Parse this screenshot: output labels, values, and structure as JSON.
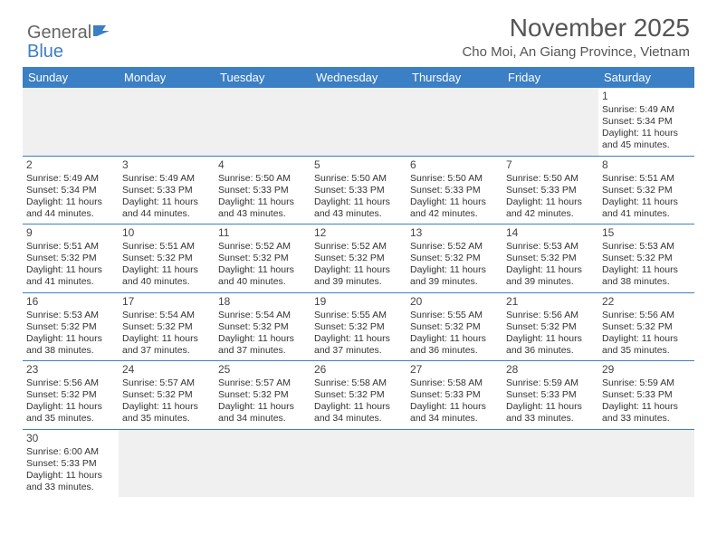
{
  "logo": {
    "text1": "General",
    "text2": "Blue"
  },
  "title": "November 2025",
  "location": "Cho Moi, An Giang Province, Vietnam",
  "colors": {
    "header_bg": "#3b7fc4",
    "header_text": "#ffffff",
    "border": "#3b7fc4",
    "empty_bg": "#f0f0f0",
    "text": "#333333"
  },
  "weekdays": [
    "Sunday",
    "Monday",
    "Tuesday",
    "Wednesday",
    "Thursday",
    "Friday",
    "Saturday"
  ],
  "weeks": [
    [
      null,
      null,
      null,
      null,
      null,
      null,
      {
        "d": "1",
        "sr": "Sunrise: 5:49 AM",
        "ss": "Sunset: 5:34 PM",
        "dl": "Daylight: 11 hours and 45 minutes."
      }
    ],
    [
      {
        "d": "2",
        "sr": "Sunrise: 5:49 AM",
        "ss": "Sunset: 5:34 PM",
        "dl": "Daylight: 11 hours and 44 minutes."
      },
      {
        "d": "3",
        "sr": "Sunrise: 5:49 AM",
        "ss": "Sunset: 5:33 PM",
        "dl": "Daylight: 11 hours and 44 minutes."
      },
      {
        "d": "4",
        "sr": "Sunrise: 5:50 AM",
        "ss": "Sunset: 5:33 PM",
        "dl": "Daylight: 11 hours and 43 minutes."
      },
      {
        "d": "5",
        "sr": "Sunrise: 5:50 AM",
        "ss": "Sunset: 5:33 PM",
        "dl": "Daylight: 11 hours and 43 minutes."
      },
      {
        "d": "6",
        "sr": "Sunrise: 5:50 AM",
        "ss": "Sunset: 5:33 PM",
        "dl": "Daylight: 11 hours and 42 minutes."
      },
      {
        "d": "7",
        "sr": "Sunrise: 5:50 AM",
        "ss": "Sunset: 5:33 PM",
        "dl": "Daylight: 11 hours and 42 minutes."
      },
      {
        "d": "8",
        "sr": "Sunrise: 5:51 AM",
        "ss": "Sunset: 5:32 PM",
        "dl": "Daylight: 11 hours and 41 minutes."
      }
    ],
    [
      {
        "d": "9",
        "sr": "Sunrise: 5:51 AM",
        "ss": "Sunset: 5:32 PM",
        "dl": "Daylight: 11 hours and 41 minutes."
      },
      {
        "d": "10",
        "sr": "Sunrise: 5:51 AM",
        "ss": "Sunset: 5:32 PM",
        "dl": "Daylight: 11 hours and 40 minutes."
      },
      {
        "d": "11",
        "sr": "Sunrise: 5:52 AM",
        "ss": "Sunset: 5:32 PM",
        "dl": "Daylight: 11 hours and 40 minutes."
      },
      {
        "d": "12",
        "sr": "Sunrise: 5:52 AM",
        "ss": "Sunset: 5:32 PM",
        "dl": "Daylight: 11 hours and 39 minutes."
      },
      {
        "d": "13",
        "sr": "Sunrise: 5:52 AM",
        "ss": "Sunset: 5:32 PM",
        "dl": "Daylight: 11 hours and 39 minutes."
      },
      {
        "d": "14",
        "sr": "Sunrise: 5:53 AM",
        "ss": "Sunset: 5:32 PM",
        "dl": "Daylight: 11 hours and 39 minutes."
      },
      {
        "d": "15",
        "sr": "Sunrise: 5:53 AM",
        "ss": "Sunset: 5:32 PM",
        "dl": "Daylight: 11 hours and 38 minutes."
      }
    ],
    [
      {
        "d": "16",
        "sr": "Sunrise: 5:53 AM",
        "ss": "Sunset: 5:32 PM",
        "dl": "Daylight: 11 hours and 38 minutes."
      },
      {
        "d": "17",
        "sr": "Sunrise: 5:54 AM",
        "ss": "Sunset: 5:32 PM",
        "dl": "Daylight: 11 hours and 37 minutes."
      },
      {
        "d": "18",
        "sr": "Sunrise: 5:54 AM",
        "ss": "Sunset: 5:32 PM",
        "dl": "Daylight: 11 hours and 37 minutes."
      },
      {
        "d": "19",
        "sr": "Sunrise: 5:55 AM",
        "ss": "Sunset: 5:32 PM",
        "dl": "Daylight: 11 hours and 37 minutes."
      },
      {
        "d": "20",
        "sr": "Sunrise: 5:55 AM",
        "ss": "Sunset: 5:32 PM",
        "dl": "Daylight: 11 hours and 36 minutes."
      },
      {
        "d": "21",
        "sr": "Sunrise: 5:56 AM",
        "ss": "Sunset: 5:32 PM",
        "dl": "Daylight: 11 hours and 36 minutes."
      },
      {
        "d": "22",
        "sr": "Sunrise: 5:56 AM",
        "ss": "Sunset: 5:32 PM",
        "dl": "Daylight: 11 hours and 35 minutes."
      }
    ],
    [
      {
        "d": "23",
        "sr": "Sunrise: 5:56 AM",
        "ss": "Sunset: 5:32 PM",
        "dl": "Daylight: 11 hours and 35 minutes."
      },
      {
        "d": "24",
        "sr": "Sunrise: 5:57 AM",
        "ss": "Sunset: 5:32 PM",
        "dl": "Daylight: 11 hours and 35 minutes."
      },
      {
        "d": "25",
        "sr": "Sunrise: 5:57 AM",
        "ss": "Sunset: 5:32 PM",
        "dl": "Daylight: 11 hours and 34 minutes."
      },
      {
        "d": "26",
        "sr": "Sunrise: 5:58 AM",
        "ss": "Sunset: 5:32 PM",
        "dl": "Daylight: 11 hours and 34 minutes."
      },
      {
        "d": "27",
        "sr": "Sunrise: 5:58 AM",
        "ss": "Sunset: 5:33 PM",
        "dl": "Daylight: 11 hours and 34 minutes."
      },
      {
        "d": "28",
        "sr": "Sunrise: 5:59 AM",
        "ss": "Sunset: 5:33 PM",
        "dl": "Daylight: 11 hours and 33 minutes."
      },
      {
        "d": "29",
        "sr": "Sunrise: 5:59 AM",
        "ss": "Sunset: 5:33 PM",
        "dl": "Daylight: 11 hours and 33 minutes."
      }
    ],
    [
      {
        "d": "30",
        "sr": "Sunrise: 6:00 AM",
        "ss": "Sunset: 5:33 PM",
        "dl": "Daylight: 11 hours and 33 minutes."
      },
      null,
      null,
      null,
      null,
      null,
      null
    ]
  ]
}
